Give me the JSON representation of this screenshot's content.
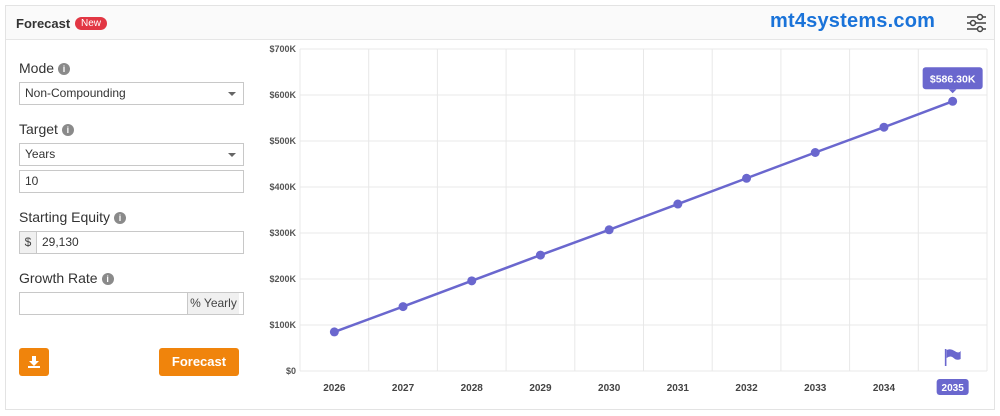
{
  "header": {
    "title": "Forecast",
    "badge": "New",
    "brand": "mt4systems.com"
  },
  "form": {
    "mode_label": "Mode",
    "mode_value": "Non-Compounding",
    "target_label": "Target",
    "target_value": "Years",
    "target_amount": "10",
    "equity_label": "Starting Equity",
    "equity_prefix": "$",
    "equity_value": "29,130",
    "growth_label": "Growth Rate",
    "growth_suffix": "% Yearly",
    "forecast_button": "Forecast"
  },
  "chart_data": {
    "type": "line",
    "categories": [
      "2026",
      "2027",
      "2028",
      "2029",
      "2030",
      "2031",
      "2032",
      "2033",
      "2034",
      "2035"
    ],
    "series": [
      {
        "color": "#6a67ce",
        "values": [
          85000,
          140000,
          196000,
          252000,
          307000,
          363000,
          419000,
          475000,
          530000,
          586300
        ],
        "value_labels": [
          null,
          null,
          null,
          null,
          null,
          null,
          null,
          null,
          null,
          "$586.30K"
        ]
      }
    ],
    "ylim": [
      0,
      700000
    ],
    "yticks": [
      {
        "value": 0,
        "label": "$0"
      },
      {
        "value": 100000,
        "label": "$100K"
      },
      {
        "value": 200000,
        "label": "$200K"
      },
      {
        "value": 300000,
        "label": "$300K"
      },
      {
        "value": 400000,
        "label": "$400K"
      },
      {
        "value": 500000,
        "label": "$500K"
      },
      {
        "value": 600000,
        "label": "$600K"
      },
      {
        "value": 700000,
        "label": "$700K"
      }
    ],
    "grid": true
  }
}
